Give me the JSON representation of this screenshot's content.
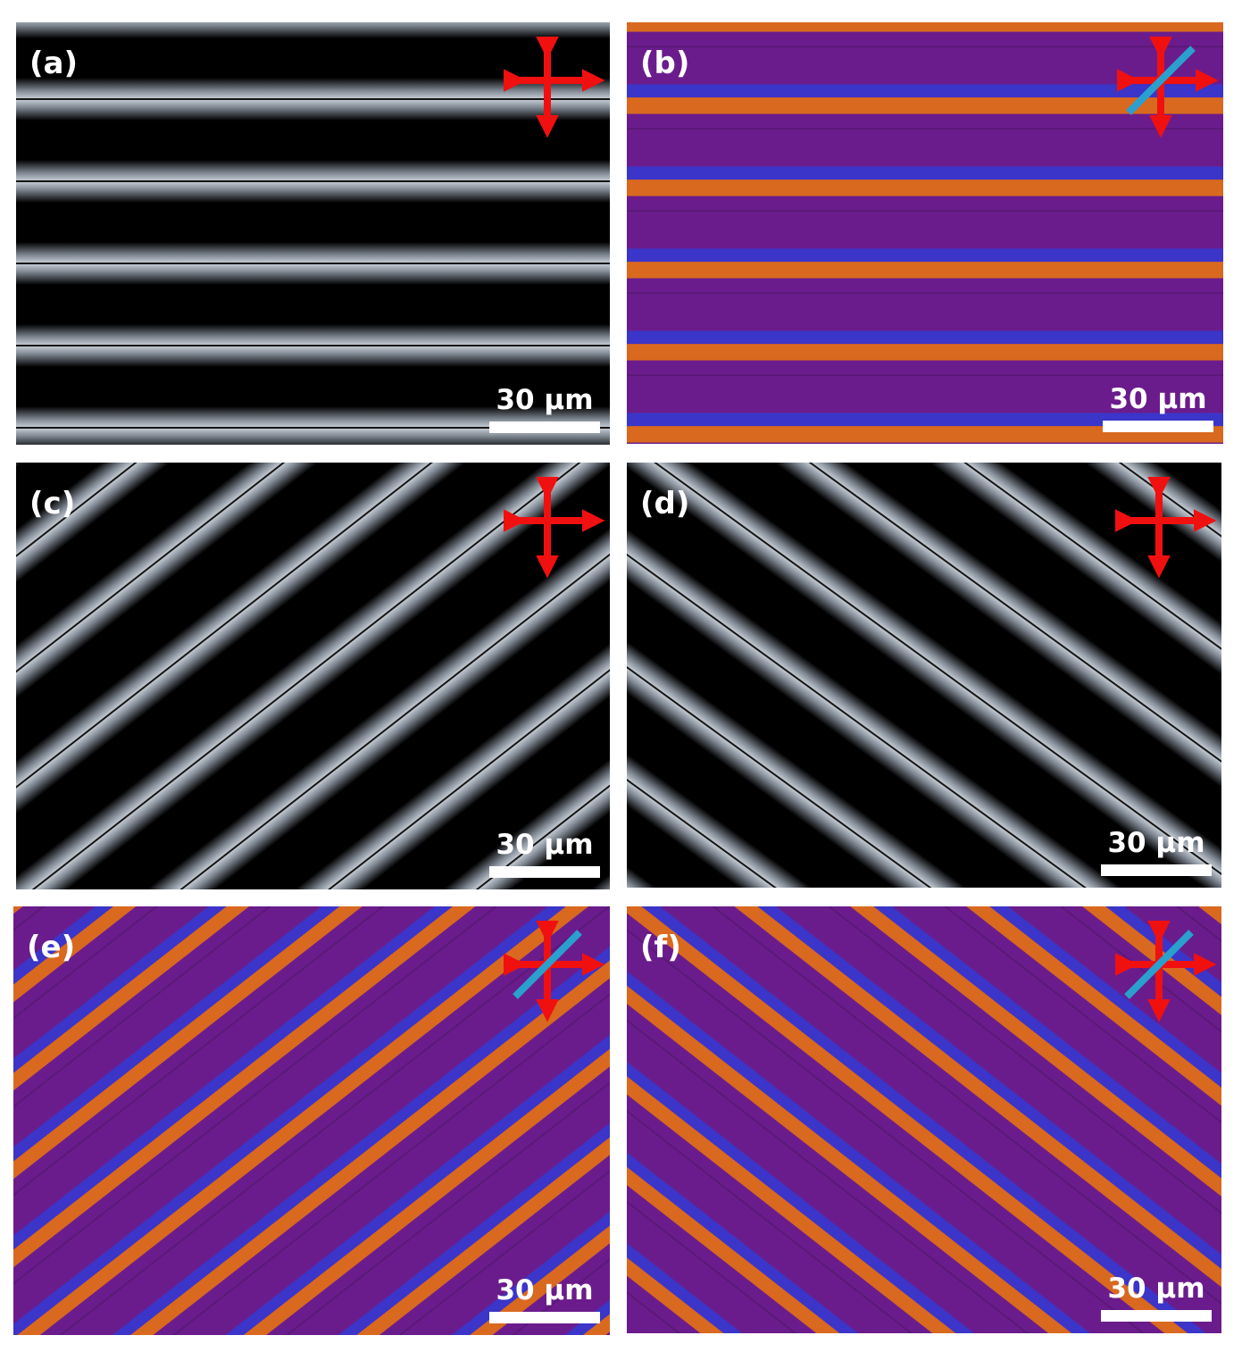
{
  "panels": [
    {
      "label": "(a)",
      "scale_bar": "30 µm"
    },
    {
      "label": "(b)",
      "scale_bar": "30 µm"
    },
    {
      "label": "(c)",
      "scale_bar": "30 µm"
    },
    {
      "label": "(d)",
      "scale_bar": "30 µm"
    },
    {
      "label": "(e)",
      "scale_bar": "30 µm"
    },
    {
      "label": "(f)",
      "scale_bar": "30 µm"
    }
  ]
}
